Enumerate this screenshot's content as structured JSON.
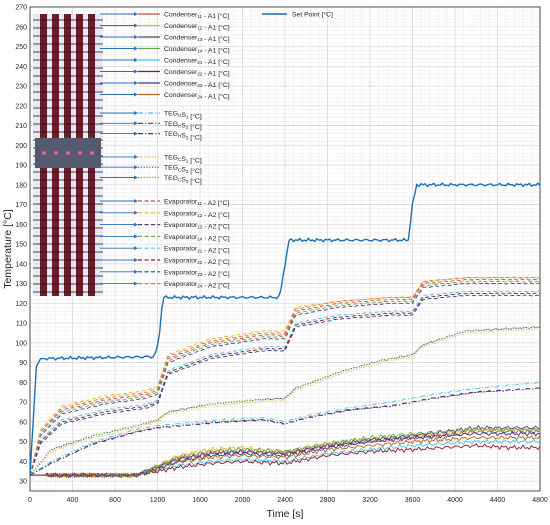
{
  "chart_data": {
    "type": "line",
    "xlabel": "Time [s]",
    "ylabel": "Temperature [°C]",
    "xlim": [
      0,
      4800
    ],
    "ylim": [
      25,
      270
    ],
    "grid": true,
    "minor_grid": true,
    "legend_placement": "top-left",
    "x_ticks": [
      0,
      400,
      800,
      1200,
      1600,
      2000,
      2400,
      2800,
      3200,
      3600,
      4000,
      4400,
      4800
    ],
    "y_ticks": [
      30,
      40,
      50,
      60,
      70,
      80,
      90,
      100,
      110,
      120,
      130,
      140,
      150,
      160,
      170,
      180,
      190,
      200,
      210,
      220,
      230,
      240,
      250,
      260,
      270
    ],
    "setpoint": {
      "name": "Set Point [°C]",
      "color": "#1f6fb5",
      "x": [
        0,
        60,
        100,
        1170,
        1210,
        1250,
        2350,
        2400,
        2440,
        3560,
        3600,
        3640,
        4800
      ],
      "y": [
        33,
        88,
        92,
        93,
        100,
        123,
        123,
        140,
        152,
        152,
        170,
        180,
        180
      ]
    },
    "series": [
      {
        "name": "Condenser",
        "sub": "11",
        "suffix": " - A1 [°C]",
        "group": "condenser",
        "color": "#c0504d",
        "dash": "solid",
        "x": [
          0,
          1000,
          1400,
          1700,
          2000,
          2400,
          2800,
          3200,
          3600,
          3900,
          4200,
          4500,
          4800
        ],
        "y": [
          33,
          33,
          42,
          44,
          45,
          44,
          48,
          50,
          52,
          53,
          55,
          55,
          55
        ]
      },
      {
        "name": "Condenser",
        "sub": "12",
        "suffix": " - A1 [°C]",
        "group": "condenser",
        "color": "#f2b134",
        "dash": "solid",
        "x": [
          0,
          1000,
          1400,
          1700,
          2000,
          2400,
          2800,
          3200,
          3600,
          3900,
          4200,
          4500,
          4800
        ],
        "y": [
          33,
          33,
          43,
          46,
          47,
          45,
          49,
          51,
          53,
          54,
          56,
          56,
          56
        ]
      },
      {
        "name": "Condenser",
        "sub": "13",
        "suffix": " - A1 [°C]",
        "group": "condenser",
        "color": "#5a3d7a",
        "dash": "solid",
        "x": [
          0,
          1000,
          1400,
          1700,
          2000,
          2400,
          2800,
          3200,
          3600,
          3900,
          4200,
          4500,
          4800
        ],
        "y": [
          33,
          33,
          41,
          44,
          45,
          44,
          48,
          51,
          53,
          55,
          57,
          57,
          57
        ]
      },
      {
        "name": "Condenser",
        "sub": "14",
        "suffix": " - A1 [°C]",
        "group": "condenser",
        "color": "#6aa84f",
        "dash": "solid",
        "x": [
          0,
          1000,
          1400,
          1700,
          2000,
          2400,
          2800,
          3200,
          3600,
          3900,
          4200,
          4500,
          4800
        ],
        "y": [
          33,
          33,
          42,
          45,
          46,
          45,
          49,
          52,
          54,
          55,
          56,
          56,
          56
        ]
      },
      {
        "name": "Condenser",
        "sub": "21",
        "suffix": " - A1 [°C]",
        "group": "condenser",
        "color": "#4fc3e8",
        "dash": "solid",
        "x": [
          0,
          1000,
          1400,
          1700,
          2000,
          2400,
          2800,
          3200,
          3600,
          3900,
          4200,
          4500,
          4800
        ],
        "y": [
          33,
          33,
          38,
          40,
          41,
          40,
          44,
          46,
          48,
          49,
          50,
          50,
          50
        ]
      },
      {
        "name": "Condenser",
        "sub": "22",
        "suffix": " - A1 [°C]",
        "group": "condenser",
        "color": "#8b1a2b",
        "dash": "solid",
        "x": [
          0,
          1000,
          1400,
          1700,
          2000,
          2400,
          2800,
          3200,
          3600,
          3900,
          4200,
          4500,
          4800
        ],
        "y": [
          33,
          33,
          37,
          39,
          40,
          39,
          43,
          45,
          46,
          47,
          48,
          47,
          47
        ]
      },
      {
        "name": "Condenser",
        "sub": "23",
        "suffix": " - A1 [°C]",
        "group": "condenser",
        "color": "#2e3f8f",
        "dash": "solid",
        "x": [
          0,
          1000,
          1400,
          1700,
          2000,
          2400,
          2800,
          3200,
          3600,
          3900,
          4200,
          4500,
          4800
        ],
        "y": [
          33,
          33,
          40,
          43,
          44,
          43,
          47,
          50,
          52,
          53,
          54,
          54,
          54
        ]
      },
      {
        "name": "Condenser",
        "sub": "24",
        "suffix": " - A1 [°C]",
        "group": "condenser",
        "color": "#b5651d",
        "dash": "solid",
        "x": [
          0,
          1000,
          1400,
          1700,
          2000,
          2400,
          2800,
          3200,
          3600,
          3900,
          4200,
          4500,
          4800
        ],
        "y": [
          33,
          33,
          40,
          42,
          43,
          42,
          46,
          48,
          50,
          51,
          52,
          52,
          52
        ]
      },
      {
        "name": "TEG",
        "sub": "H",
        "mid": "S",
        "sub2": "1",
        "suffix": " [°C]",
        "group": "teg",
        "color": "#4fc3e8",
        "dash": "dashdot",
        "x": [
          0,
          200,
          600,
          1000,
          1200,
          1400,
          1800,
          2200,
          2400,
          2600,
          3000,
          3400,
          3800,
          4200,
          4800
        ],
        "y": [
          33,
          40,
          50,
          56,
          58,
          59,
          61,
          62,
          60,
          63,
          67,
          70,
          74,
          77,
          80
        ]
      },
      {
        "name": "TEG",
        "sub": "H",
        "mid": "S",
        "sub2": "2",
        "suffix": " [°C]",
        "group": "teg",
        "color": "#8b1a2b",
        "dash": "dashdot",
        "x": [
          0,
          200,
          600,
          1000,
          1200,
          1400,
          1800,
          2200,
          2400,
          2600,
          3000,
          3400,
          3800,
          4200,
          4800
        ],
        "y": [
          33,
          39,
          49,
          55,
          57,
          58,
          60,
          61,
          59,
          62,
          66,
          68,
          72,
          75,
          77
        ]
      },
      {
        "name": "TEG",
        "sub": "H",
        "mid": "S",
        "sub2": "3",
        "suffix": " [°C]",
        "group": "teg",
        "color": "#2e3f8f",
        "dash": "dashdot",
        "x": [
          0,
          200,
          600,
          1000,
          1200,
          1400,
          1800,
          2200,
          2400,
          2600,
          3000,
          3400,
          3800,
          4200,
          4800
        ],
        "y": [
          33,
          39,
          49,
          55,
          57,
          58,
          60,
          61,
          59,
          62,
          66,
          68,
          72,
          75,
          77
        ]
      },
      {
        "name": "TEG",
        "sub": "C",
        "mid": "S",
        "sub2": "1",
        "suffix": " [°C]",
        "group": "teg",
        "color": "#f2b134",
        "dash": "dotted",
        "x": [
          0,
          200,
          600,
          1000,
          1200,
          1300,
          1700,
          2100,
          2400,
          2500,
          2900,
          3300,
          3600,
          3700,
          4100,
          4800
        ],
        "y": [
          33,
          45,
          52,
          57,
          60,
          64,
          68,
          70,
          71,
          76,
          84,
          90,
          93,
          98,
          105,
          107
        ]
      },
      {
        "name": "TEG",
        "sub": "C",
        "mid": "S",
        "sub2": "2",
        "suffix": " [°C]",
        "group": "teg",
        "color": "#5a3d7a",
        "dash": "dotted",
        "x": [
          0,
          200,
          600,
          1000,
          1200,
          1300,
          1700,
          2100,
          2400,
          2500,
          2900,
          3300,
          3600,
          3700,
          4100,
          4800
        ],
        "y": [
          33,
          46,
          53,
          58,
          61,
          65,
          69,
          71,
          72,
          77,
          85,
          91,
          94,
          99,
          106,
          108
        ]
      },
      {
        "name": "TEG",
        "sub": "C",
        "mid": "S",
        "sub2": "3",
        "suffix": " [°C]",
        "group": "teg",
        "color": "#6aa84f",
        "dash": "dotted",
        "x": [
          0,
          200,
          600,
          1000,
          1200,
          1300,
          1700,
          2100,
          2400,
          2500,
          2900,
          3300,
          3600,
          3700,
          4100,
          4800
        ],
        "y": [
          33,
          46,
          53,
          58,
          61,
          65,
          69,
          71,
          72,
          77,
          85,
          91,
          94,
          99,
          106,
          108
        ]
      },
      {
        "name": "Evaporator",
        "sub": "11",
        "suffix": " - A2 [°C]",
        "group": "evaporator",
        "color": "#c0504d",
        "dash": "dashed",
        "x": [
          0,
          100,
          300,
          700,
          1100,
          1200,
          1300,
          1700,
          2200,
          2400,
          2500,
          2900,
          3400,
          3600,
          3700,
          4100,
          4300,
          4800
        ],
        "y": [
          33,
          55,
          66,
          71,
          74,
          76,
          92,
          100,
          104,
          104,
          116,
          120,
          122,
          122,
          130,
          132,
          132,
          132
        ]
      },
      {
        "name": "Evaporator",
        "sub": "12",
        "suffix": " - A2 [°C]",
        "group": "evaporator",
        "color": "#f2b134",
        "dash": "dashed",
        "x": [
          0,
          100,
          300,
          700,
          1100,
          1200,
          1300,
          1700,
          2200,
          2400,
          2500,
          2900,
          3400,
          3600,
          3700,
          4100,
          4300,
          4800
        ],
        "y": [
          33,
          56,
          68,
          73,
          76,
          78,
          94,
          102,
          106,
          106,
          118,
          121,
          123,
          123,
          131,
          133,
          133,
          133
        ]
      },
      {
        "name": "Evaporator",
        "sub": "13",
        "suffix": " - A2 [°C]",
        "group": "evaporator",
        "color": "#5a3d7a",
        "dash": "dashed",
        "x": [
          0,
          100,
          300,
          700,
          1100,
          1200,
          1300,
          1700,
          2200,
          2400,
          2500,
          2900,
          3400,
          3600,
          3700,
          4100,
          4300,
          4800
        ],
        "y": [
          33,
          53,
          64,
          69,
          72,
          74,
          90,
          98,
          102,
          102,
          114,
          118,
          120,
          120,
          128,
          130,
          130,
          130
        ]
      },
      {
        "name": "Evaporator",
        "sub": "14",
        "suffix": " - A2 [°C]",
        "group": "evaporator",
        "color": "#6aa84f",
        "dash": "dashed",
        "x": [
          0,
          100,
          300,
          700,
          1100,
          1200,
          1300,
          1700,
          2200,
          2400,
          2500,
          2900,
          3400,
          3600,
          3700,
          4100,
          4300,
          4800
        ],
        "y": [
          33,
          54,
          65,
          70,
          73,
          75,
          91,
          99,
          103,
          103,
          115,
          119,
          121,
          121,
          129,
          131,
          131,
          131
        ]
      },
      {
        "name": "Evaporator",
        "sub": "21",
        "suffix": " - A2 [°C]",
        "group": "evaporator",
        "color": "#4fc3e8",
        "dash": "dashed",
        "x": [
          0,
          100,
          300,
          700,
          1100,
          1200,
          1300,
          1700,
          2200,
          2400,
          2500,
          2900,
          3400,
          3600,
          3700,
          4100,
          4300,
          4800
        ],
        "y": [
          33,
          51,
          61,
          66,
          69,
          71,
          86,
          94,
          98,
          98,
          110,
          114,
          116,
          116,
          124,
          126,
          126,
          126
        ]
      },
      {
        "name": "Evaporator",
        "sub": "22",
        "suffix": " - A2 [°C]",
        "group": "evaporator",
        "color": "#8b1a2b",
        "dash": "dashed",
        "x": [
          0,
          100,
          300,
          700,
          1100,
          1200,
          1300,
          1700,
          2200,
          2400,
          2500,
          2900,
          3400,
          3600,
          3700,
          4100,
          4300,
          4800
        ],
        "y": [
          33,
          50,
          60,
          65,
          68,
          70,
          85,
          93,
          97,
          97,
          109,
          113,
          115,
          115,
          123,
          125,
          125,
          125
        ]
      },
      {
        "name": "Evaporator",
        "sub": "23",
        "suffix": " - A2 [°C]",
        "group": "evaporator",
        "color": "#2e3f8f",
        "dash": "dashed",
        "x": [
          0,
          100,
          300,
          700,
          1100,
          1200,
          1300,
          1700,
          2200,
          2400,
          2500,
          2900,
          3400,
          3600,
          3700,
          4100,
          4300,
          4800
        ],
        "y": [
          33,
          49,
          59,
          64,
          67,
          69,
          84,
          92,
          96,
          96,
          108,
          112,
          114,
          114,
          122,
          124,
          124,
          124
        ]
      },
      {
        "name": "Evaporator",
        "sub": "24",
        "suffix": " - A2 [°C]",
        "group": "evaporator",
        "color": "#e07b39",
        "dash": "dashed",
        "x": [
          0,
          100,
          300,
          700,
          1100,
          1200,
          1300,
          1700,
          2200,
          2400,
          2500,
          2900,
          3400,
          3600,
          3700,
          4100,
          4300,
          4800
        ],
        "y": [
          33,
          55,
          67,
          72,
          75,
          77,
          93,
          101,
          105,
          105,
          117,
          121,
          123,
          123,
          131,
          133,
          133,
          133
        ]
      }
    ]
  }
}
